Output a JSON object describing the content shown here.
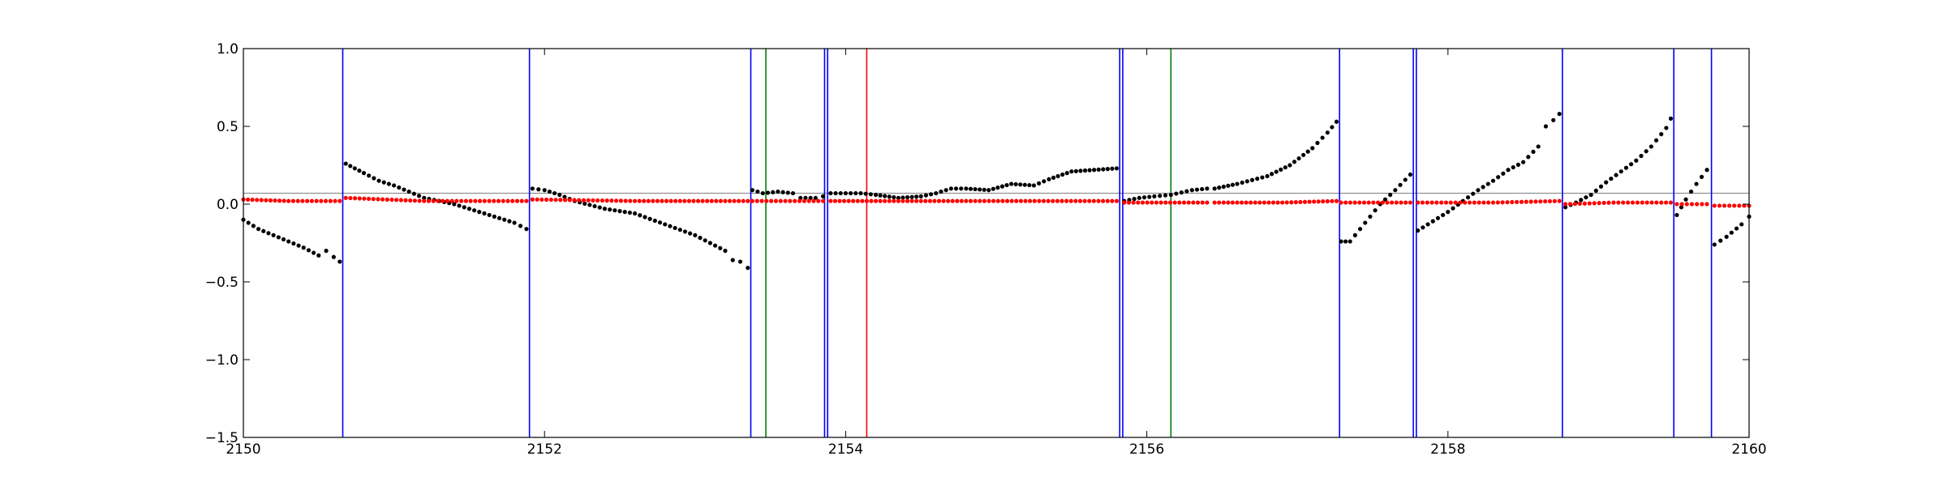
{
  "chart_data": {
    "type": "scatter",
    "title": "",
    "xlabel": "",
    "ylabel": "",
    "xlim": [
      2150,
      2160
    ],
    "ylim": [
      -1.5,
      1.0
    ],
    "grid": false,
    "legend": "none",
    "x_ticks": [
      "2150",
      "2152",
      "2154",
      "2156",
      "2158",
      "2160"
    ],
    "y_ticks": [
      "1.0",
      "0.5",
      "0.0",
      "−0.5",
      "−1.0",
      "−1.5"
    ],
    "x_tick_values": [
      2150,
      2152,
      2154,
      2156,
      2158,
      2160
    ],
    "y_tick_values": [
      1.0,
      0.5,
      0.0,
      -0.5,
      -1.0,
      -1.5
    ],
    "reference_line": {
      "y": 0.07,
      "color": "#808080"
    },
    "vertical_lines": [
      {
        "x": 2150.66,
        "color": "#0000ff"
      },
      {
        "x": 2151.9,
        "color": "#0000ff"
      },
      {
        "x": 2153.37,
        "color": "#0000ff"
      },
      {
        "x": 2153.47,
        "color": "#008000"
      },
      {
        "x": 2153.86,
        "color": "#0000ff"
      },
      {
        "x": 2153.88,
        "color": "#0000ff"
      },
      {
        "x": 2154.14,
        "color": "#ff0000"
      },
      {
        "x": 2155.82,
        "color": "#0000ff"
      },
      {
        "x": 2155.84,
        "color": "#0000ff"
      },
      {
        "x": 2156.16,
        "color": "#008000"
      },
      {
        "x": 2157.28,
        "color": "#0000ff"
      },
      {
        "x": 2157.77,
        "color": "#0000ff"
      },
      {
        "x": 2157.79,
        "color": "#0000ff"
      },
      {
        "x": 2158.76,
        "color": "#0000ff"
      },
      {
        "x": 2159.5,
        "color": "#0000ff"
      },
      {
        "x": 2159.75,
        "color": "#0000ff"
      }
    ],
    "series": [
      {
        "color": "#000000",
        "segments": [
          {
            "points": [
              [
                2150.0,
                -0.1
              ],
              [
                2150.1,
                -0.16
              ],
              [
                2150.2,
                -0.2
              ],
              [
                2150.3,
                -0.24
              ],
              [
                2150.4,
                -0.28
              ],
              [
                2150.5,
                -0.33
              ],
              [
                2150.55,
                -0.3
              ],
              [
                2150.6,
                -0.34
              ],
              [
                2150.64,
                -0.37
              ]
            ]
          },
          {
            "points": [
              [
                2150.68,
                0.26
              ],
              [
                2150.8,
                0.2
              ],
              [
                2150.9,
                0.15
              ],
              [
                2151.0,
                0.12
              ],
              [
                2151.1,
                0.08
              ],
              [
                2151.2,
                0.04
              ],
              [
                2151.4,
                0.0
              ],
              [
                2151.6,
                -0.06
              ],
              [
                2151.8,
                -0.12
              ],
              [
                2151.88,
                -0.16
              ]
            ]
          },
          {
            "points": [
              [
                2151.92,
                0.1
              ],
              [
                2152.0,
                0.09
              ],
              [
                2152.1,
                0.06
              ],
              [
                2152.2,
                0.02
              ],
              [
                2152.4,
                -0.03
              ],
              [
                2152.6,
                -0.06
              ],
              [
                2152.8,
                -0.13
              ],
              [
                2153.0,
                -0.2
              ],
              [
                2153.1,
                -0.25
              ],
              [
                2153.2,
                -0.3
              ],
              [
                2153.25,
                -0.36
              ],
              [
                2153.3,
                -0.37
              ],
              [
                2153.35,
                -0.41
              ]
            ]
          },
          {
            "points": [
              [
                2153.38,
                0.09
              ],
              [
                2153.45,
                0.07
              ],
              [
                2153.55,
                0.08
              ],
              [
                2153.65,
                0.07
              ],
              [
                2153.7,
                0.04
              ],
              [
                2153.8,
                0.04
              ],
              [
                2153.85,
                0.05
              ]
            ]
          },
          {
            "points": [
              [
                2153.9,
                0.07
              ],
              [
                2154.0,
                0.07
              ],
              [
                2154.1,
                0.07
              ],
              [
                2154.2,
                0.06
              ],
              [
                2154.35,
                0.04
              ],
              [
                2154.5,
                0.05
              ],
              [
                2154.6,
                0.07
              ],
              [
                2154.7,
                0.1
              ],
              [
                2154.8,
                0.1
              ],
              [
                2154.95,
                0.09
              ],
              [
                2155.1,
                0.13
              ],
              [
                2155.25,
                0.12
              ],
              [
                2155.35,
                0.16
              ],
              [
                2155.5,
                0.21
              ],
              [
                2155.65,
                0.22
              ],
              [
                2155.8,
                0.23
              ]
            ]
          },
          {
            "points": [
              [
                2155.85,
                0.02
              ],
              [
                2155.95,
                0.04
              ],
              [
                2156.05,
                0.05
              ],
              [
                2156.16,
                0.06
              ],
              [
                2156.3,
                0.09
              ],
              [
                2156.4,
                0.1
              ]
            ]
          },
          {
            "points": [
              [
                2156.45,
                0.1
              ],
              [
                2156.6,
                0.13
              ],
              [
                2156.8,
                0.18
              ],
              [
                2156.95,
                0.25
              ],
              [
                2157.1,
                0.36
              ],
              [
                2157.2,
                0.46
              ],
              [
                2157.26,
                0.53
              ]
            ]
          },
          {
            "points": [
              [
                2157.29,
                -0.24
              ],
              [
                2157.35,
                -0.24
              ],
              [
                2157.45,
                -0.12
              ],
              [
                2157.55,
                0.0
              ],
              [
                2157.65,
                0.09
              ],
              [
                2157.75,
                0.19
              ]
            ]
          },
          {
            "points": [
              [
                2157.8,
                -0.17
              ],
              [
                2157.9,
                -0.11
              ],
              [
                2158.0,
                -0.05
              ],
              [
                2158.1,
                0.02
              ],
              [
                2158.2,
                0.09
              ],
              [
                2158.3,
                0.15
              ],
              [
                2158.4,
                0.22
              ],
              [
                2158.5,
                0.27
              ],
              [
                2158.6,
                0.37
              ]
            ]
          },
          {
            "points": [
              [
                2158.65,
                0.5
              ],
              [
                2158.7,
                0.54
              ],
              [
                2158.74,
                0.58
              ]
            ]
          },
          {
            "points": [
              [
                2158.78,
                -0.02
              ],
              [
                2158.85,
                0.01
              ],
              [
                2158.95,
                0.06
              ],
              [
                2159.05,
                0.14
              ],
              [
                2159.15,
                0.21
              ],
              [
                2159.25,
                0.28
              ],
              [
                2159.35,
                0.37
              ],
              [
                2159.45,
                0.49
              ],
              [
                2159.48,
                0.55
              ]
            ]
          },
          {
            "points": [
              [
                2159.52,
                -0.07
              ],
              [
                2159.58,
                0.03
              ],
              [
                2159.65,
                0.13
              ],
              [
                2159.72,
                0.22
              ]
            ]
          },
          {
            "points": [
              [
                2159.77,
                -0.26
              ],
              [
                2159.85,
                -0.21
              ],
              [
                2159.95,
                -0.13
              ],
              [
                2160.0,
                -0.08
              ]
            ]
          }
        ]
      },
      {
        "color": "#ff0000",
        "segments": [
          {
            "points": [
              [
                2150.0,
                0.03
              ],
              [
                2150.3,
                0.02
              ],
              [
                2150.64,
                0.02
              ]
            ]
          },
          {
            "points": [
              [
                2150.68,
                0.04
              ],
              [
                2151.2,
                0.02
              ],
              [
                2151.88,
                0.02
              ]
            ]
          },
          {
            "points": [
              [
                2151.92,
                0.03
              ],
              [
                2152.6,
                0.02
              ],
              [
                2153.35,
                0.02
              ]
            ]
          },
          {
            "points": [
              [
                2153.38,
                0.02
              ],
              [
                2153.85,
                0.02
              ]
            ]
          },
          {
            "points": [
              [
                2153.9,
                0.02
              ],
              [
                2154.8,
                0.02
              ],
              [
                2155.8,
                0.02
              ]
            ]
          },
          {
            "points": [
              [
                2155.85,
                0.01
              ],
              [
                2156.4,
                0.01
              ]
            ]
          },
          {
            "points": [
              [
                2156.45,
                0.01
              ],
              [
                2156.9,
                0.01
              ],
              [
                2157.26,
                0.02
              ]
            ]
          },
          {
            "points": [
              [
                2157.29,
                0.01
              ],
              [
                2157.75,
                0.01
              ]
            ]
          },
          {
            "points": [
              [
                2157.8,
                0.01
              ],
              [
                2158.3,
                0.01
              ],
              [
                2158.74,
                0.02
              ]
            ]
          },
          {
            "points": [
              [
                2158.78,
                0.0
              ],
              [
                2159.1,
                0.01
              ],
              [
                2159.48,
                0.01
              ]
            ]
          },
          {
            "points": [
              [
                2159.52,
                0.0
              ],
              [
                2159.72,
                0.0
              ]
            ]
          },
          {
            "points": [
              [
                2159.77,
                -0.01
              ],
              [
                2160.0,
                -0.01
              ]
            ]
          }
        ]
      }
    ]
  }
}
